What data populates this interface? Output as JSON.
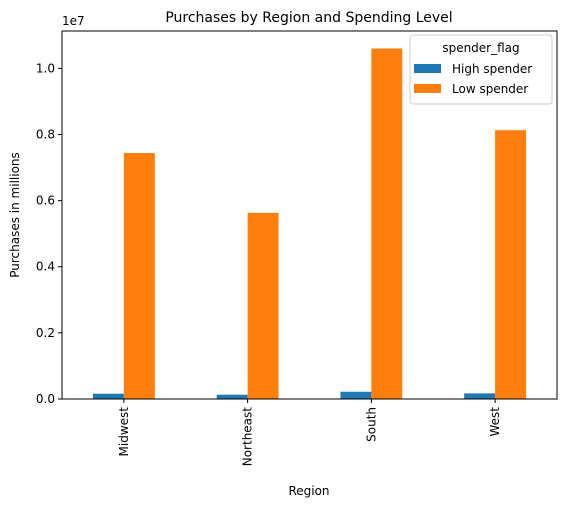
{
  "chart_data": {
    "type": "bar",
    "title": "Purchases by Region and Spending Level",
    "xlabel": "Region",
    "ylabel": "Purchases in millions",
    "y_offset_label": "1e7",
    "categories": [
      "Midwest",
      "Northeast",
      "South",
      "West"
    ],
    "series": [
      {
        "name": "High spender",
        "color": "#1f77b4",
        "values": [
          0.016,
          0.013,
          0.022,
          0.017
        ]
      },
      {
        "name": "Low spender",
        "color": "#ff7f0e",
        "values": [
          0.744,
          0.563,
          1.06,
          0.813
        ]
      }
    ],
    "ylim": [
      0,
      1.113
    ],
    "yticks": [
      0.0,
      0.2,
      0.4,
      0.6,
      0.8,
      1.0
    ],
    "ytick_labels": [
      "0.0",
      "0.2",
      "0.4",
      "0.6",
      "0.8",
      "1.0"
    ],
    "grid": false,
    "legend": {
      "title": "spender_flag",
      "placement": "top-right"
    }
  }
}
